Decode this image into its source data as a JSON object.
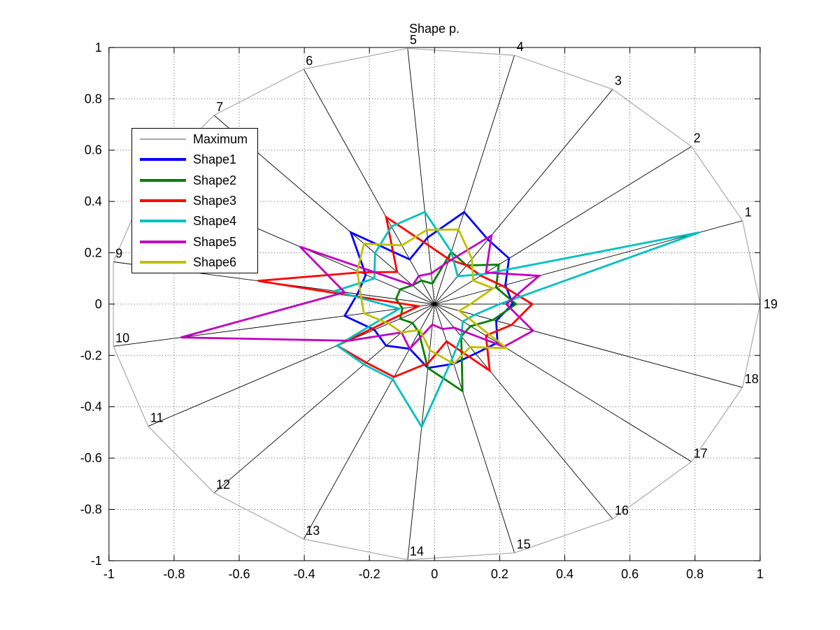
{
  "figure": {
    "background": "#ffffff",
    "plot_background": "#ffffff"
  },
  "chart_data": {
    "type": "radar",
    "title": "Shape p.",
    "num_axes": 19,
    "axis_labels": [
      "1",
      "2",
      "3",
      "4",
      "5",
      "6",
      "7",
      "8",
      "9",
      "10",
      "11",
      "12",
      "13",
      "14",
      "15",
      "16",
      "17",
      "18",
      "19"
    ],
    "axis_angle_deg": "k*360/19 counterclockwise from east, k = axis label",
    "rlim": [
      0,
      1
    ],
    "xlim": [
      -1,
      1
    ],
    "ylim": [
      -1,
      1
    ],
    "xtick_labels": [
      "-1",
      "-0.8",
      "-0.6",
      "-0.4",
      "-0.2",
      "0",
      "0.2",
      "0.4",
      "0.6",
      "0.8",
      "1"
    ],
    "ytick_labels": [
      "-1",
      "-0.8",
      "-0.6",
      "-0.4",
      "-0.2",
      "0",
      "0.2",
      "0.4",
      "0.6",
      "0.8",
      "1"
    ],
    "xticks": [
      -1,
      -0.8,
      -0.6,
      -0.4,
      -0.2,
      0,
      0.2,
      0.4,
      0.6,
      0.8,
      1
    ],
    "yticks": [
      -1,
      -0.8,
      -0.6,
      -0.4,
      -0.2,
      0,
      0.2,
      0.4,
      0.6,
      0.8,
      1
    ],
    "grid": true,
    "spoke_color": "#000000",
    "legend_position": "upper-left",
    "series": [
      {
        "name": "Maximum",
        "color": "#a8a8a8",
        "width": 1.2,
        "values": [
          1,
          1,
          1,
          1,
          1,
          1,
          1,
          1,
          1,
          1,
          1,
          1,
          1,
          1,
          1,
          1,
          1,
          1,
          1
        ]
      },
      {
        "name": "Shape1",
        "color": "#0000ff",
        "width": 2.8,
        "values": [
          0.23,
          0.29,
          0.3,
          0.37,
          0.26,
          0.19,
          0.38,
          0.24,
          0.24,
          0.28,
          0.21,
          0.22,
          0.19,
          0.25,
          0.24,
          0.23,
          0.245,
          0.2,
          0.24
        ]
      },
      {
        "name": "Shape2",
        "color": "#008000",
        "width": 2.8,
        "values": [
          0.2,
          0.25,
          0.18,
          0.21,
          0.08,
          0.1,
          0.1,
          0.12,
          0.12,
          0.1,
          0.12,
          0.1,
          0.12,
          0.25,
          0.35,
          0.15,
          0.14,
          0.19,
          0.25
        ]
      },
      {
        "name": "Shape3",
        "color": "#ff0000",
        "width": 2.8,
        "values": [
          0.22,
          0.18,
          0.18,
          0.18,
          0.23,
          0.37,
          0.17,
          0.26,
          0.55,
          0.05,
          0.34,
          0.31,
          0.31,
          0.23,
          0.15,
          0.31,
          0.2,
          0.25,
          0.3
        ]
      },
      {
        "name": "Shape4",
        "color": "#00bfbf",
        "width": 2.8,
        "values": [
          0.86,
          0.19,
          0.13,
          0.21,
          0.36,
          0.33,
          0.27,
          0.21,
          0.31,
          0.11,
          0.34,
          0.32,
          0.32,
          0.48,
          0.22,
          0.15,
          0.11,
          0.13,
          0.2
        ]
      },
      {
        "name": "Shape5",
        "color": "#bf00bf",
        "width": 2.8,
        "values": [
          0.34,
          0.2,
          0.32,
          0.17,
          0.12,
          0.12,
          0.1,
          0.47,
          0.28,
          0.79,
          0.3,
          0.15,
          0.19,
          0.08,
          0.1,
          0.11,
          0.27,
          0.32,
          0.22
        ]
      },
      {
        "name": "Shape6",
        "color": "#bfbf00",
        "width": 2.8,
        "values": [
          0.19,
          0.15,
          0.21,
          0.3,
          0.29,
          0.25,
          0.32,
          0.27,
          0.23,
          0.22,
          0.16,
          0.15,
          0.11,
          0.18,
          0.24,
          0.2,
          0.28,
          0.08,
          0.11
        ]
      }
    ]
  }
}
